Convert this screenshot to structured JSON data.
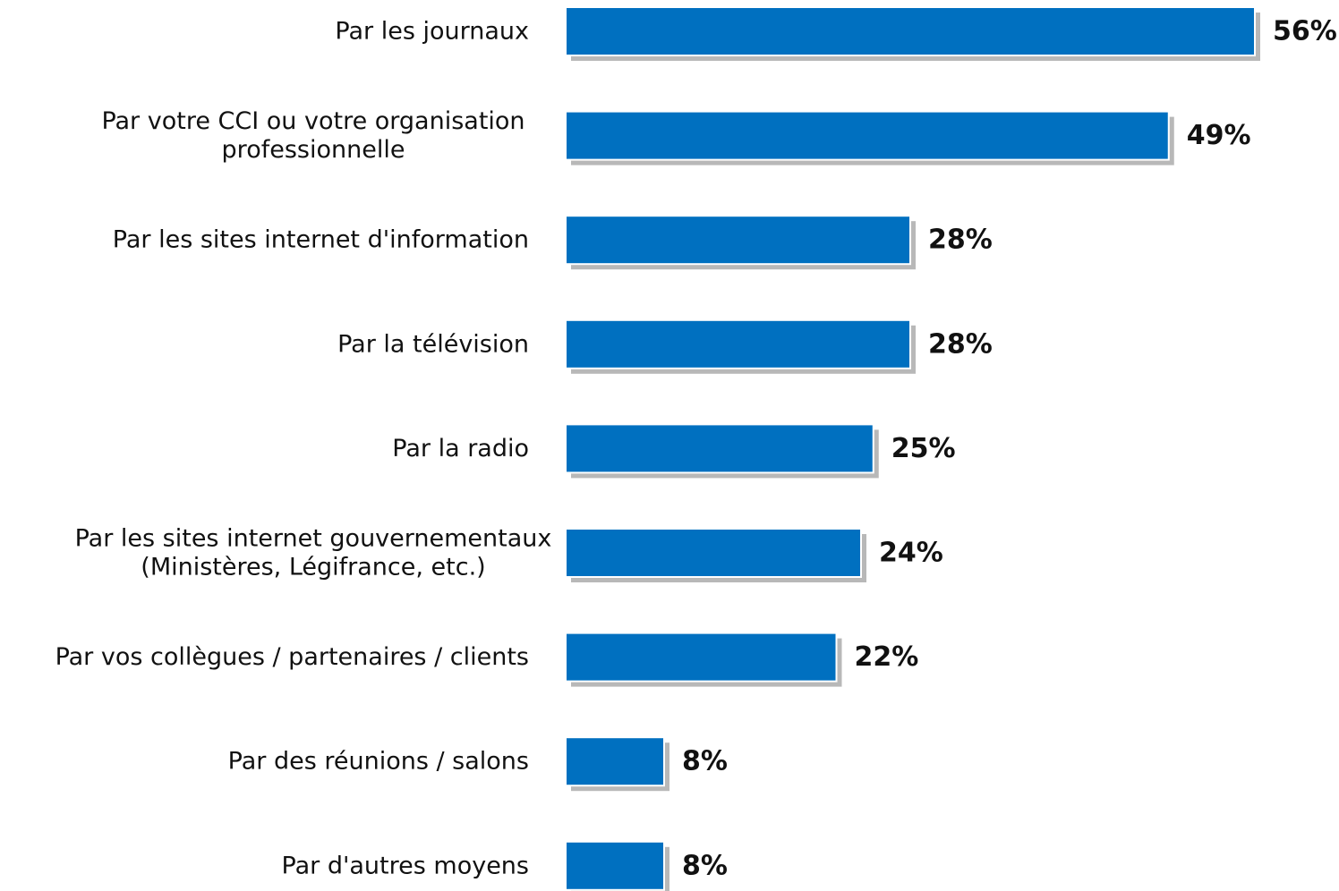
{
  "chart_data": {
    "type": "bar",
    "orientation": "horizontal",
    "categories": [
      [
        "Par les journaux"
      ],
      [
        "Par votre CCI ou votre organisation",
        "professionnelle"
      ],
      [
        "Par les sites internet d'information"
      ],
      [
        "Par la télévision"
      ],
      [
        "Par la radio"
      ],
      [
        "Par les sites internet gouvernementaux",
        "(Ministères, Légifrance, etc.)"
      ],
      [
        "Par vos collègues / partenaires / clients"
      ],
      [
        "Par des réunions / salons"
      ],
      [
        "Par d'autres moyens"
      ]
    ],
    "values": [
      56,
      49,
      28,
      28,
      25,
      24,
      22,
      8,
      8
    ],
    "value_labels": [
      "56%",
      "49%",
      "28%",
      "28%",
      "25%",
      "24%",
      "22%",
      "8%",
      "8%"
    ],
    "xlim": [
      0,
      56
    ],
    "grid": false,
    "legend": "none",
    "colors": {
      "bar": "#0070C0",
      "shadow": "#B8B8B8",
      "text": "#111111"
    }
  }
}
